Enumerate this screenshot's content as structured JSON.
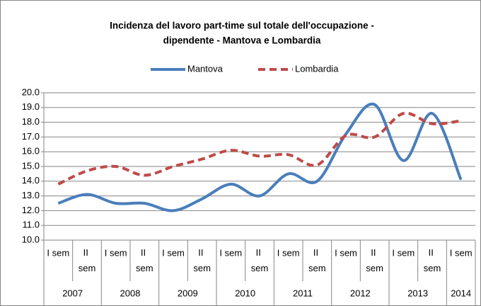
{
  "chart_data": {
    "type": "line",
    "title": [
      "Incidenza del lavoro part-time sul totale dell'occupazione  -",
      "dipendente - Mantova e Lombardia"
    ],
    "categories": [
      "I sem",
      "II sem",
      "I sem",
      "II sem",
      "I sem",
      "II sem",
      "I sem",
      "II sem",
      "I sem",
      "II sem",
      "I sem",
      "II sem",
      "I sem",
      "II sem",
      "I sem"
    ],
    "years": [
      {
        "label": "2007",
        "count": 2
      },
      {
        "label": "2008",
        "count": 2
      },
      {
        "label": "2009",
        "count": 2
      },
      {
        "label": "2010",
        "count": 2
      },
      {
        "label": "2011",
        "count": 2
      },
      {
        "label": "2012",
        "count": 2
      },
      {
        "label": "2013",
        "count": 2
      },
      {
        "label": "2014",
        "count": 1
      }
    ],
    "series": [
      {
        "name": "Mantova",
        "color": "#4a7ebb",
        "dash": false,
        "values": [
          12.5,
          13.1,
          12.5,
          12.5,
          12.0,
          12.8,
          13.8,
          13.0,
          14.5,
          14.0,
          17.2,
          19.2,
          15.4,
          18.6,
          14.1
        ]
      },
      {
        "name": "Lombardia",
        "color": "#be4b48",
        "dash": true,
        "values": [
          13.8,
          14.7,
          15.0,
          14.4,
          15.0,
          15.5,
          16.1,
          15.7,
          15.8,
          15.1,
          17.1,
          17.0,
          18.6,
          17.9,
          18.1
        ]
      }
    ],
    "ylim": [
      10,
      20
    ],
    "yticks": [
      {
        "value": 10,
        "label": "10.0"
      },
      {
        "value": 11,
        "label": "11.0"
      },
      {
        "value": 12,
        "label": "12.0"
      },
      {
        "value": 13,
        "label": "13.0"
      },
      {
        "value": 14,
        "label": "14.0"
      },
      {
        "value": 15,
        "label": "15.0"
      },
      {
        "value": 16,
        "label": "16.0"
      },
      {
        "value": 17,
        "label": "17.0"
      },
      {
        "value": 18,
        "label": "18.0"
      },
      {
        "value": 19,
        "label": "19.0"
      },
      {
        "value": 20,
        "label": "20.0"
      }
    ],
    "grid": true,
    "legend": "top",
    "smooth": true
  }
}
